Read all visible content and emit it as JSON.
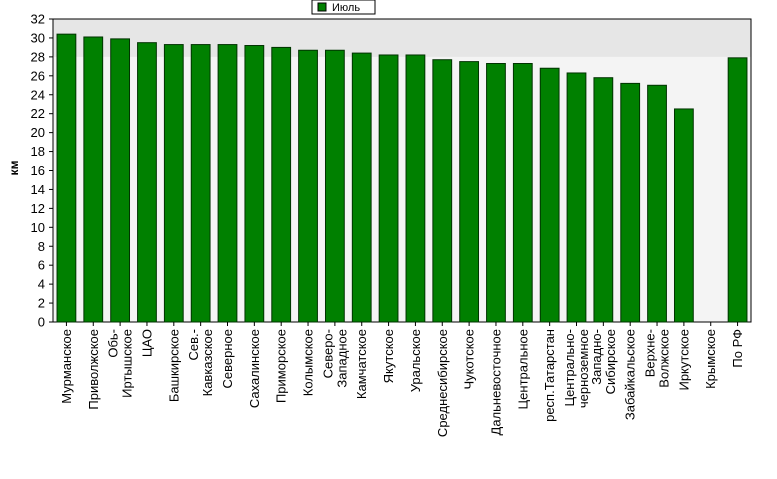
{
  "chart_data": {
    "type": "bar",
    "title": "",
    "xlabel": "",
    "ylabel": "км",
    "ylim": [
      0,
      32
    ],
    "yticks": [
      0,
      2,
      4,
      6,
      8,
      10,
      12,
      14,
      16,
      18,
      20,
      22,
      24,
      26,
      28,
      30,
      32
    ],
    "grid": false,
    "legend_position": "top-center",
    "categories": [
      [
        "Мурманское"
      ],
      [
        "Приволжское"
      ],
      [
        "Обь-",
        "Иртышское"
      ],
      [
        "ЦАО"
      ],
      [
        "Башкирское"
      ],
      [
        "Сев.-",
        "Кавказское"
      ],
      [
        "Северное"
      ],
      [
        "Сахалинское"
      ],
      [
        "Приморское"
      ],
      [
        "Колымское"
      ],
      [
        "Северо-",
        "Западное"
      ],
      [
        "Камчатское"
      ],
      [
        "Якутское"
      ],
      [
        "Уральское"
      ],
      [
        "Среднесибирское"
      ],
      [
        "Чукотское"
      ],
      [
        "Дальневосточное"
      ],
      [
        "Центральное"
      ],
      [
        "респ.Татарстан"
      ],
      [
        "Центрально-",
        "черноземное"
      ],
      [
        "Западно-",
        "Сибирское"
      ],
      [
        "Забайкальское"
      ],
      [
        "Верхне-",
        "Волжское"
      ],
      [
        "Иркутское"
      ],
      [
        "Крымское"
      ],
      [
        "По РФ"
      ]
    ],
    "series": [
      {
        "name": "Июль",
        "color": "#008000",
        "values": [
          30.4,
          30.1,
          29.9,
          29.5,
          29.3,
          29.3,
          29.3,
          29.2,
          29.0,
          28.7,
          28.7,
          28.4,
          28.2,
          28.2,
          27.7,
          27.5,
          27.3,
          27.3,
          26.8,
          26.3,
          25.8,
          25.2,
          25.0,
          22.5,
          null,
          27.9
        ]
      }
    ],
    "colors": {
      "plot_background": "#f4f4f4",
      "band_background": "#e6e6e6",
      "bar_fill": "#008000",
      "bar_stroke": "#003300"
    }
  },
  "legend": {
    "label": "Июль"
  }
}
